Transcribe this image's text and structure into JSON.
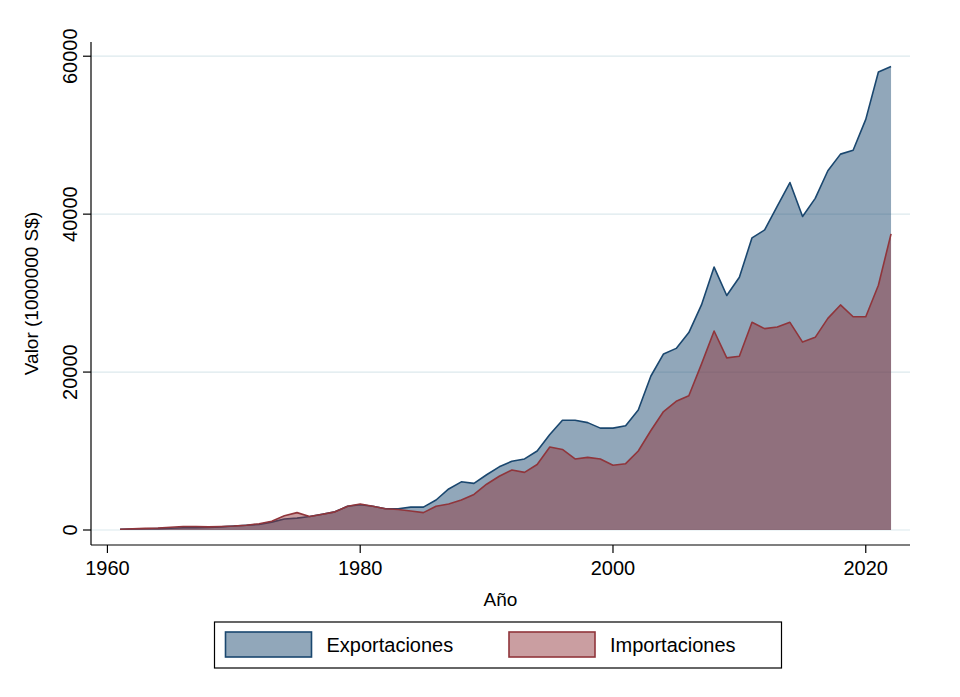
{
  "chart_data": {
    "type": "area",
    "x_label": "Año",
    "y_label": "Valor (1000000 S$)",
    "x": [
      1961,
      1962,
      1963,
      1964,
      1965,
      1966,
      1967,
      1968,
      1969,
      1970,
      1971,
      1972,
      1973,
      1974,
      1975,
      1976,
      1977,
      1978,
      1979,
      1980,
      1981,
      1982,
      1983,
      1984,
      1985,
      1986,
      1987,
      1988,
      1989,
      1990,
      1991,
      1992,
      1993,
      1994,
      1995,
      1996,
      1997,
      1998,
      1999,
      2000,
      2001,
      2002,
      2003,
      2004,
      2005,
      2006,
      2007,
      2008,
      2009,
      2010,
      2011,
      2012,
      2013,
      2014,
      2015,
      2016,
      2017,
      2018,
      2019,
      2020,
      2021,
      2022
    ],
    "series": [
      {
        "name": "Exportaciones",
        "color": "#1a476f",
        "values": [
          100,
          120,
          150,
          180,
          220,
          280,
          300,
          320,
          400,
          500,
          600,
          700,
          1000,
          1400,
          1500,
          1700,
          2000,
          2300,
          3000,
          3200,
          3000,
          2700,
          2700,
          2900,
          2900,
          3800,
          5200,
          6100,
          5900,
          7000,
          8000,
          8700,
          9000,
          10000,
          12100,
          13900,
          13900,
          13600,
          12900,
          12900,
          13200,
          15200,
          19500,
          22300,
          23000,
          25000,
          28500,
          33300,
          29700,
          32000,
          37000,
          38000,
          41000,
          44000,
          39700,
          42000,
          45500,
          47600,
          48100,
          52000,
          58000,
          58700
        ]
      },
      {
        "name": "Importaciones",
        "color": "#90353b",
        "values": [
          100,
          150,
          200,
          250,
          350,
          450,
          450,
          400,
          450,
          500,
          600,
          800,
          1100,
          1800,
          2200,
          1700,
          2000,
          2300,
          3000,
          3300,
          3000,
          2700,
          2600,
          2400,
          2200,
          3000,
          3300,
          3800,
          4500,
          5800,
          6800,
          7600,
          7300,
          8300,
          10500,
          10200,
          9000,
          9200,
          9000,
          8200,
          8400,
          10000,
          12600,
          15000,
          16300,
          17000,
          21000,
          25200,
          21800,
          22000,
          26300,
          25500,
          25700,
          26300,
          23800,
          24400,
          26800,
          28500,
          27000,
          27000,
          31000,
          37500
        ]
      }
    ],
    "xlim": [
      1958.7,
      2023.5
    ],
    "xticks": [
      1960,
      1980,
      2000,
      2020
    ],
    "ylim": [
      -1900,
      61800
    ],
    "yticks": [
      0,
      20000,
      40000,
      60000
    ],
    "grid": true,
    "stacked": false,
    "legend": "bottom"
  }
}
